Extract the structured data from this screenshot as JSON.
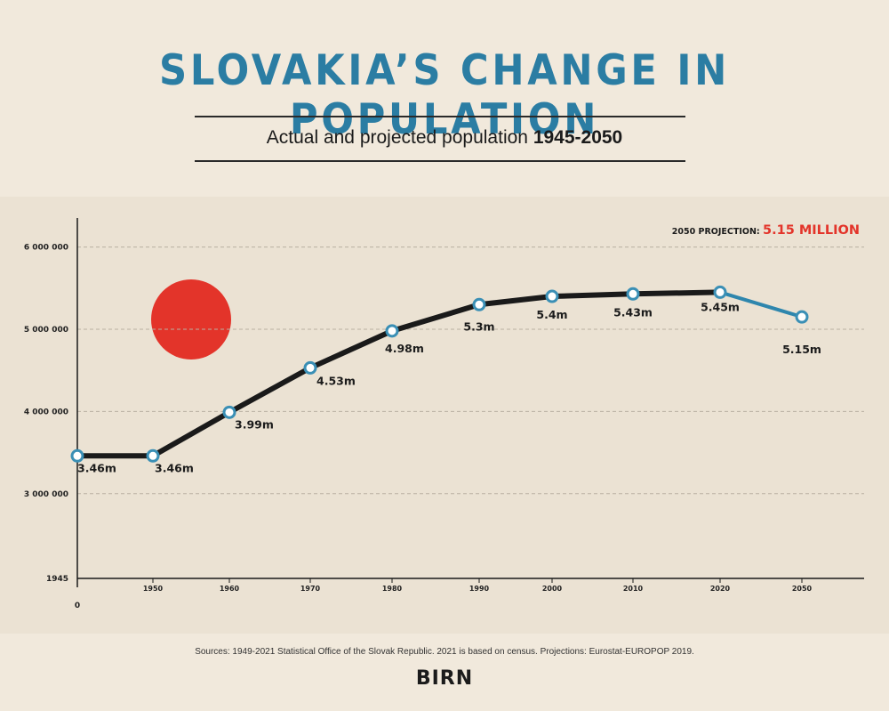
{
  "header": {
    "title": "SLOVAKIA’S CHANGE IN POPULATION",
    "subtitle_plain": "Actual and projected population ",
    "subtitle_bold": "1945-2050"
  },
  "projection_callout": {
    "label": "2050 PROJECTION: ",
    "value": "5.15 MILLION"
  },
  "footer": {
    "source": "Sources: 1949-2021 Statistical Office of the Slovak Republic. 2021 is based on census. Projections: Eurostat-EUROPOP 2019.",
    "logo": "BIRN"
  },
  "colors": {
    "title": "#2b7da3",
    "actual_line": "#1a1a1a",
    "projection_line": "#2e86ad",
    "marker_stroke": "#3a8fb5",
    "accent_red": "#e3342a",
    "grid": "#b9b0a2"
  },
  "chart_data": {
    "type": "line",
    "title": "SLOVAKIA’S CHANGE IN POPULATION",
    "subtitle": "Actual and projected population 1945-2050",
    "y_ticks": [
      {
        "value": 3000000,
        "label": "3 000 000"
      },
      {
        "value": 4000000,
        "label": "4 000 000"
      },
      {
        "value": 5000000,
        "label": "5 000 000"
      },
      {
        "value": 6000000,
        "label": "6 000 000"
      }
    ],
    "y_axis_bottom_label": "1945",
    "origin_label": "0",
    "x_ticks": [
      "1950",
      "1960",
      "1970",
      "1980",
      "1990",
      "2000",
      "2010",
      "2020",
      "2050"
    ],
    "grid": true,
    "series": [
      {
        "segment": "actual",
        "points": [
          {
            "x": "1945",
            "y": 3460000,
            "label": "3.46m"
          },
          {
            "x": "1950",
            "y": 3460000,
            "label": "3.46m"
          },
          {
            "x": "1960",
            "y": 3990000,
            "label": "3.99m"
          },
          {
            "x": "1970",
            "y": 4530000,
            "label": "4.53m"
          },
          {
            "x": "1980",
            "y": 4980000,
            "label": "4.98m"
          },
          {
            "x": "1990",
            "y": 5300000,
            "label": "5.3m"
          },
          {
            "x": "2000",
            "y": 5400000,
            "label": "5.4m"
          },
          {
            "x": "2010",
            "y": 5430000,
            "label": "5.43m"
          },
          {
            "x": "2020",
            "y": 5450000,
            "label": "5.45m"
          }
        ]
      },
      {
        "segment": "projection",
        "points": [
          {
            "x": "2020",
            "y": 5450000,
            "label": ""
          },
          {
            "x": "2050",
            "y": 5150000,
            "label": "5.15m"
          }
        ]
      }
    ]
  }
}
